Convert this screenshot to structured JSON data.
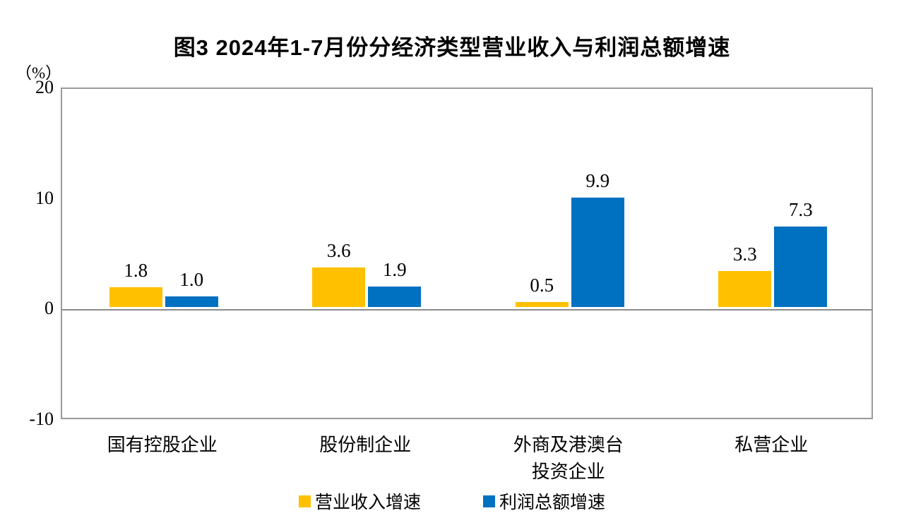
{
  "chart_data": {
    "type": "bar",
    "title": "图3  2024年1-7月份分经济类型营业收入与利润总额增速",
    "ylabel": "（%）",
    "ylim": [
      -10,
      20
    ],
    "yticks": [
      20,
      10,
      0,
      -10
    ],
    "grid": false,
    "legend_position": "bottom",
    "categories": [
      "国有控股企业",
      "股份制企业",
      "外商及港澳台\n投资企业",
      "私营企业"
    ],
    "series": [
      {
        "name": "营业收入增速",
        "color": "#FFC000",
        "values": [
          1.8,
          3.6,
          0.5,
          3.3
        ]
      },
      {
        "name": "利润总额增速",
        "color": "#0070C0",
        "values": [
          1.0,
          1.9,
          9.9,
          7.3
        ]
      }
    ]
  }
}
